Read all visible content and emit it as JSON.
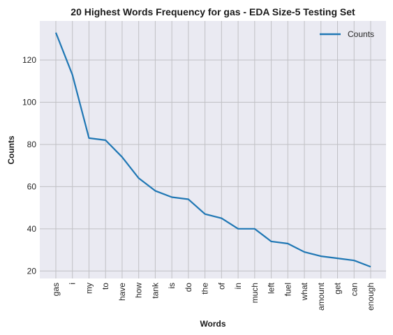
{
  "chart_data": {
    "type": "line",
    "title": "20 Highest Words Frequency for gas - EDA Size-5 Testing Set",
    "xlabel": "Words",
    "ylabel": "Counts",
    "categories": [
      "gas",
      "i",
      "my",
      "to",
      "have",
      "how",
      "tank",
      "is",
      "do",
      "the",
      "of",
      "in",
      "much",
      "left",
      "fuel",
      "what",
      "amount",
      "get",
      "can",
      "enough"
    ],
    "series": [
      {
        "name": "Counts",
        "values": [
          133,
          113,
          83,
          82,
          74,
          64,
          58,
          55,
          54,
          47,
          45,
          40,
          40,
          34,
          33,
          29,
          27,
          26,
          25,
          22
        ],
        "color": "#1f77b4"
      }
    ],
    "ylim": [
      16.45,
      138.55
    ],
    "yticks": [
      20,
      40,
      60,
      80,
      100,
      120
    ],
    "grid": true,
    "legend": "top-right",
    "background": "#eaeaf2",
    "grid_color": "#c0c0c4"
  }
}
